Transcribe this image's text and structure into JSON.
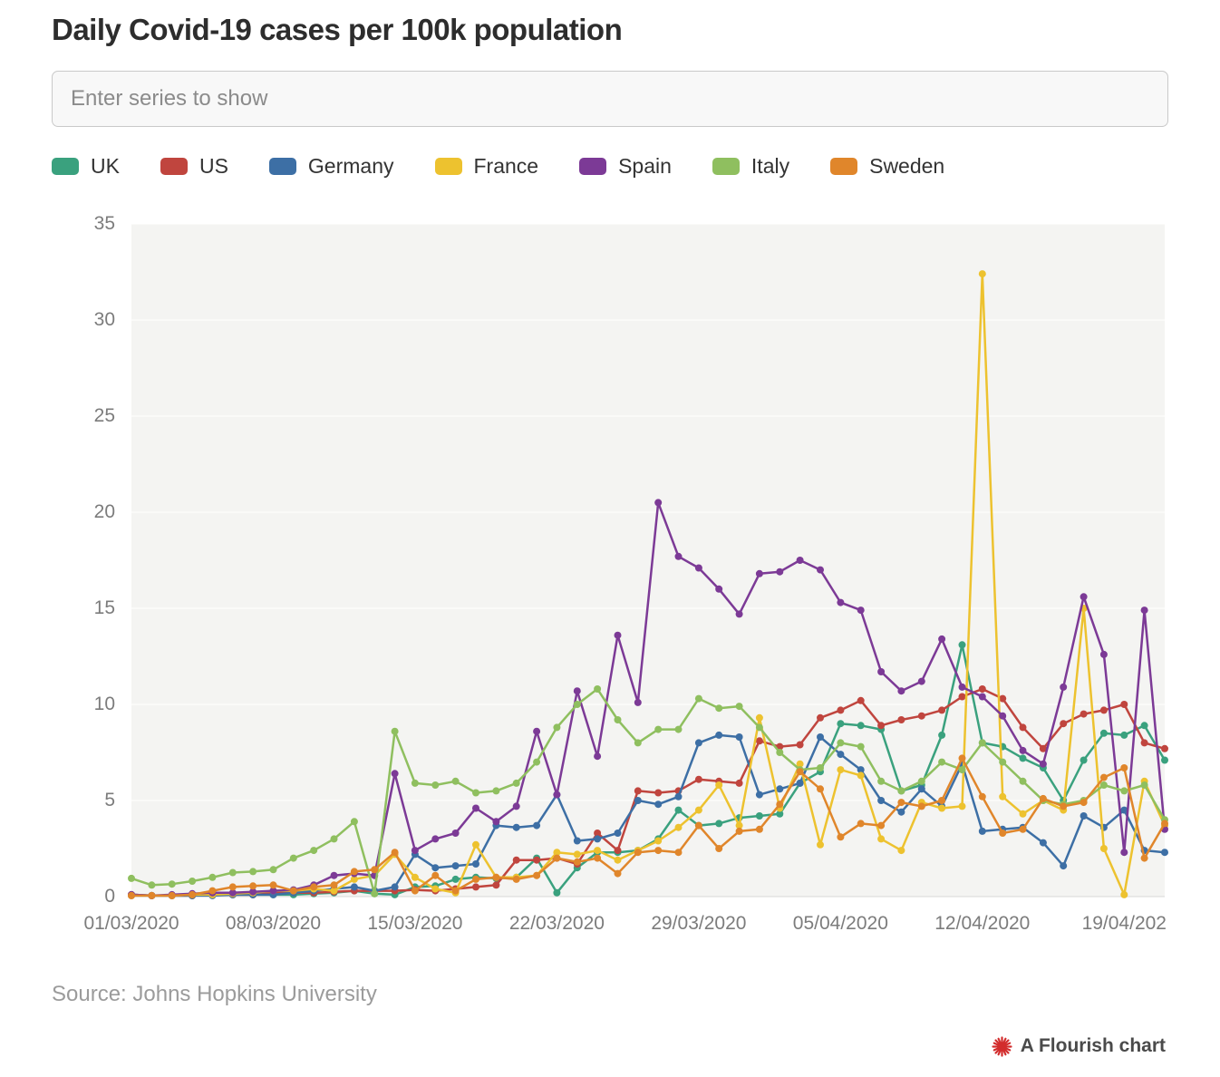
{
  "page": {
    "title": "Daily Covid-19 cases per 100k population",
    "source": "Source: Johns Hopkins University",
    "attribution": "A Flourish chart"
  },
  "search": {
    "placeholder": "Enter series to show"
  },
  "colors": {
    "flourish_red": "#d22c2c"
  },
  "chart_data": {
    "type": "line",
    "title": "Daily Covid-19 cases per 100k population",
    "grid": "horizontal",
    "legend_position": "top",
    "ylim": [
      0,
      35
    ],
    "y_ticks": [
      0,
      5,
      10,
      15,
      20,
      25,
      30,
      35
    ],
    "x_tick_labels": [
      "01/03/2020",
      "08/03/2020",
      "15/03/2020",
      "22/03/2020",
      "29/03/2020",
      "05/04/2020",
      "12/04/2020",
      "19/04/202"
    ],
    "x_tick_indices": [
      0,
      7,
      14,
      21,
      28,
      35,
      42,
      49
    ],
    "x_unit": "day",
    "points_per_series": 52,
    "series": [
      {
        "name": "UK",
        "color": "#3aa17e",
        "values": [
          0.1,
          0.05,
          0.05,
          0.05,
          0.1,
          0.1,
          0.1,
          0.1,
          0.1,
          0.15,
          0.2,
          0.3,
          0.15,
          0.1,
          0.5,
          0.55,
          0.9,
          1.0,
          0.95,
          1.0,
          2.0,
          0.2,
          1.5,
          2.3,
          2.3,
          2.4,
          3.0,
          4.5,
          3.7,
          3.8,
          4.1,
          4.2,
          4.3,
          5.9,
          6.5,
          9.0,
          8.9,
          8.7,
          5.5,
          5.8,
          8.4,
          13.1,
          8.0,
          7.8,
          7.2,
          6.7,
          5.0,
          7.1,
          8.5,
          8.4,
          8.9,
          7.1
        ]
      },
      {
        "name": "US",
        "color": "#c0453e",
        "values": [
          0.1,
          0.05,
          0.05,
          0.05,
          0.1,
          0.1,
          0.1,
          0.2,
          0.2,
          0.2,
          0.25,
          0.3,
          0.3,
          0.3,
          0.35,
          0.3,
          0.4,
          0.5,
          0.6,
          1.9,
          1.9,
          2.0,
          1.7,
          3.3,
          2.4,
          5.5,
          5.4,
          5.5,
          6.1,
          6.0,
          5.9,
          8.1,
          7.8,
          7.9,
          9.3,
          9.7,
          10.2,
          8.9,
          9.2,
          9.4,
          9.7,
          10.4,
          10.8,
          10.3,
          8.8,
          7.7,
          9.0,
          9.5,
          9.7,
          10.0,
          8.0,
          7.7
        ]
      },
      {
        "name": "Germany",
        "color": "#3d6fa5",
        "values": [
          0.05,
          0.05,
          0.05,
          0.05,
          0.05,
          0.1,
          0.1,
          0.1,
          0.2,
          0.3,
          0.4,
          0.5,
          0.3,
          0.5,
          2.2,
          1.5,
          1.6,
          1.7,
          3.7,
          3.6,
          3.7,
          5.3,
          2.9,
          3.0,
          3.3,
          5.0,
          4.8,
          5.2,
          8.0,
          8.4,
          8.3,
          5.3,
          5.6,
          5.9,
          8.3,
          7.4,
          6.6,
          5.0,
          4.4,
          5.6,
          4.7,
          6.9,
          3.4,
          3.5,
          3.6,
          2.8,
          1.6,
          4.2,
          3.6,
          4.5,
          2.4,
          2.3
        ]
      },
      {
        "name": "France",
        "color": "#edc22f",
        "values": [
          0.05,
          0.05,
          0.05,
          0.1,
          0.1,
          0.15,
          0.2,
          0.3,
          0.3,
          0.4,
          0.3,
          0.9,
          1.1,
          2.2,
          1.0,
          0.4,
          0.2,
          2.7,
          1.0,
          1.0,
          1.1,
          2.3,
          2.2,
          2.4,
          1.9,
          2.4,
          2.9,
          3.6,
          4.5,
          5.8,
          3.7,
          9.3,
          4.6,
          6.9,
          2.7,
          6.6,
          6.3,
          3.0,
          2.4,
          4.9,
          4.6,
          4.7,
          32.4,
          5.2,
          4.3,
          5.0,
          4.5,
          15.0,
          2.5,
          0.1,
          6.0,
          3.7
        ]
      },
      {
        "name": "Spain",
        "color": "#7c3a96",
        "values": [
          0.1,
          0.05,
          0.1,
          0.15,
          0.2,
          0.2,
          0.25,
          0.3,
          0.35,
          0.6,
          1.1,
          1.2,
          1.1,
          6.4,
          2.4,
          3.0,
          3.3,
          4.6,
          3.9,
          4.7,
          8.6,
          5.3,
          10.7,
          7.3,
          13.6,
          10.1,
          20.5,
          17.7,
          17.1,
          16.0,
          14.7,
          16.8,
          16.9,
          17.5,
          17.0,
          15.3,
          14.9,
          11.7,
          10.7,
          11.2,
          13.4,
          10.9,
          10.4,
          9.4,
          7.6,
          6.9,
          10.9,
          15.6,
          12.6,
          2.3,
          14.9,
          3.5
        ]
      },
      {
        "name": "Italy",
        "color": "#8fbf5f",
        "values": [
          0.95,
          0.6,
          0.65,
          0.8,
          1.0,
          1.25,
          1.3,
          1.4,
          2.0,
          2.4,
          3.0,
          3.9,
          0.15,
          8.6,
          5.9,
          5.8,
          6.0,
          5.4,
          5.5,
          5.9,
          7.0,
          8.8,
          10.0,
          10.8,
          9.2,
          8.0,
          8.7,
          8.7,
          10.3,
          9.8,
          9.9,
          8.8,
          7.5,
          6.6,
          6.7,
          8.0,
          7.8,
          6.0,
          5.5,
          6.0,
          7.0,
          6.6,
          8.0,
          7.0,
          6.0,
          5.0,
          4.8,
          5.0,
          5.8,
          5.5,
          5.8,
          4.0
        ]
      },
      {
        "name": "Sweden",
        "color": "#e0862b",
        "values": [
          0.05,
          0.05,
          0.05,
          0.1,
          0.3,
          0.5,
          0.55,
          0.6,
          0.3,
          0.5,
          0.6,
          1.3,
          1.4,
          2.3,
          0.3,
          1.1,
          0.3,
          0.9,
          1.0,
          0.9,
          1.1,
          2.0,
          1.8,
          2.0,
          1.2,
          2.3,
          2.4,
          2.3,
          3.7,
          2.5,
          3.4,
          3.5,
          4.8,
          6.5,
          5.6,
          3.1,
          3.8,
          3.7,
          4.9,
          4.7,
          5.0,
          7.2,
          5.2,
          3.3,
          3.5,
          5.1,
          4.7,
          4.9,
          6.2,
          6.7,
          2.0,
          3.8
        ]
      }
    ]
  }
}
